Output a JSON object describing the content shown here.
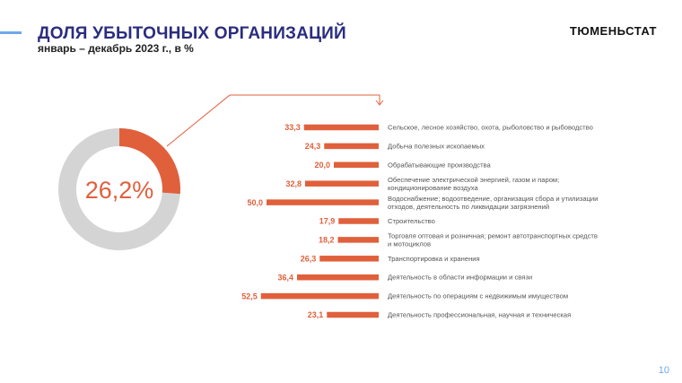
{
  "header": {
    "title": "ДОЛЯ УБЫТОЧНЫХ ОРГАНИЗАЦИЙ",
    "subtitle": "январь – декабрь 2023 г., в %",
    "brand": "ТЮМЕНЬСТАТ"
  },
  "footer": {
    "page_number": "10"
  },
  "colors": {
    "accent": "#e0603c",
    "donut_rest": "#d4d4d4",
    "title": "#2b2d7e",
    "line": "#6fa8e8"
  },
  "chart_data": [
    {
      "type": "pie",
      "values": [
        26.2,
        73.8
      ],
      "center_label": "26,2%"
    },
    {
      "type": "bar",
      "orientation": "horizontal",
      "categories": [
        [
          "Сельское, лесное хозяйство, охота, рыболовство и рыбоводство"
        ],
        [
          "Добыча полезных ископаемых"
        ],
        [
          "Обрабатывающие производства"
        ],
        [
          "Обеспечение электрической энергией, газом и паром;",
          "кондиционирование воздуха"
        ],
        [
          "Водоснабжение; водоотведение, организация сбора и утилизации",
          "отходов, деятельность по ликвидации загрязнений"
        ],
        [
          "Строительство"
        ],
        [
          "Торговля оптовая и розничная; ремонт автотранспортных средств",
          "и мотоциклов"
        ],
        [
          "Транспортировка и хранения"
        ],
        [
          "Деятельность в области информации и связи"
        ],
        [
          "Деятельность по операциям с недвижимым имуществом"
        ],
        [
          "Деятельность профессиональная, научная и техническая"
        ]
      ],
      "values": [
        33.3,
        24.3,
        20.0,
        32.8,
        50.0,
        17.9,
        18.2,
        26.3,
        36.4,
        52.5,
        23.1
      ],
      "value_labels": [
        "33,3",
        "24,3",
        "20,0",
        "32,8",
        "50,0",
        "17,9",
        "18,2",
        "26,3",
        "36,4",
        "52,5",
        "23,1"
      ]
    }
  ]
}
